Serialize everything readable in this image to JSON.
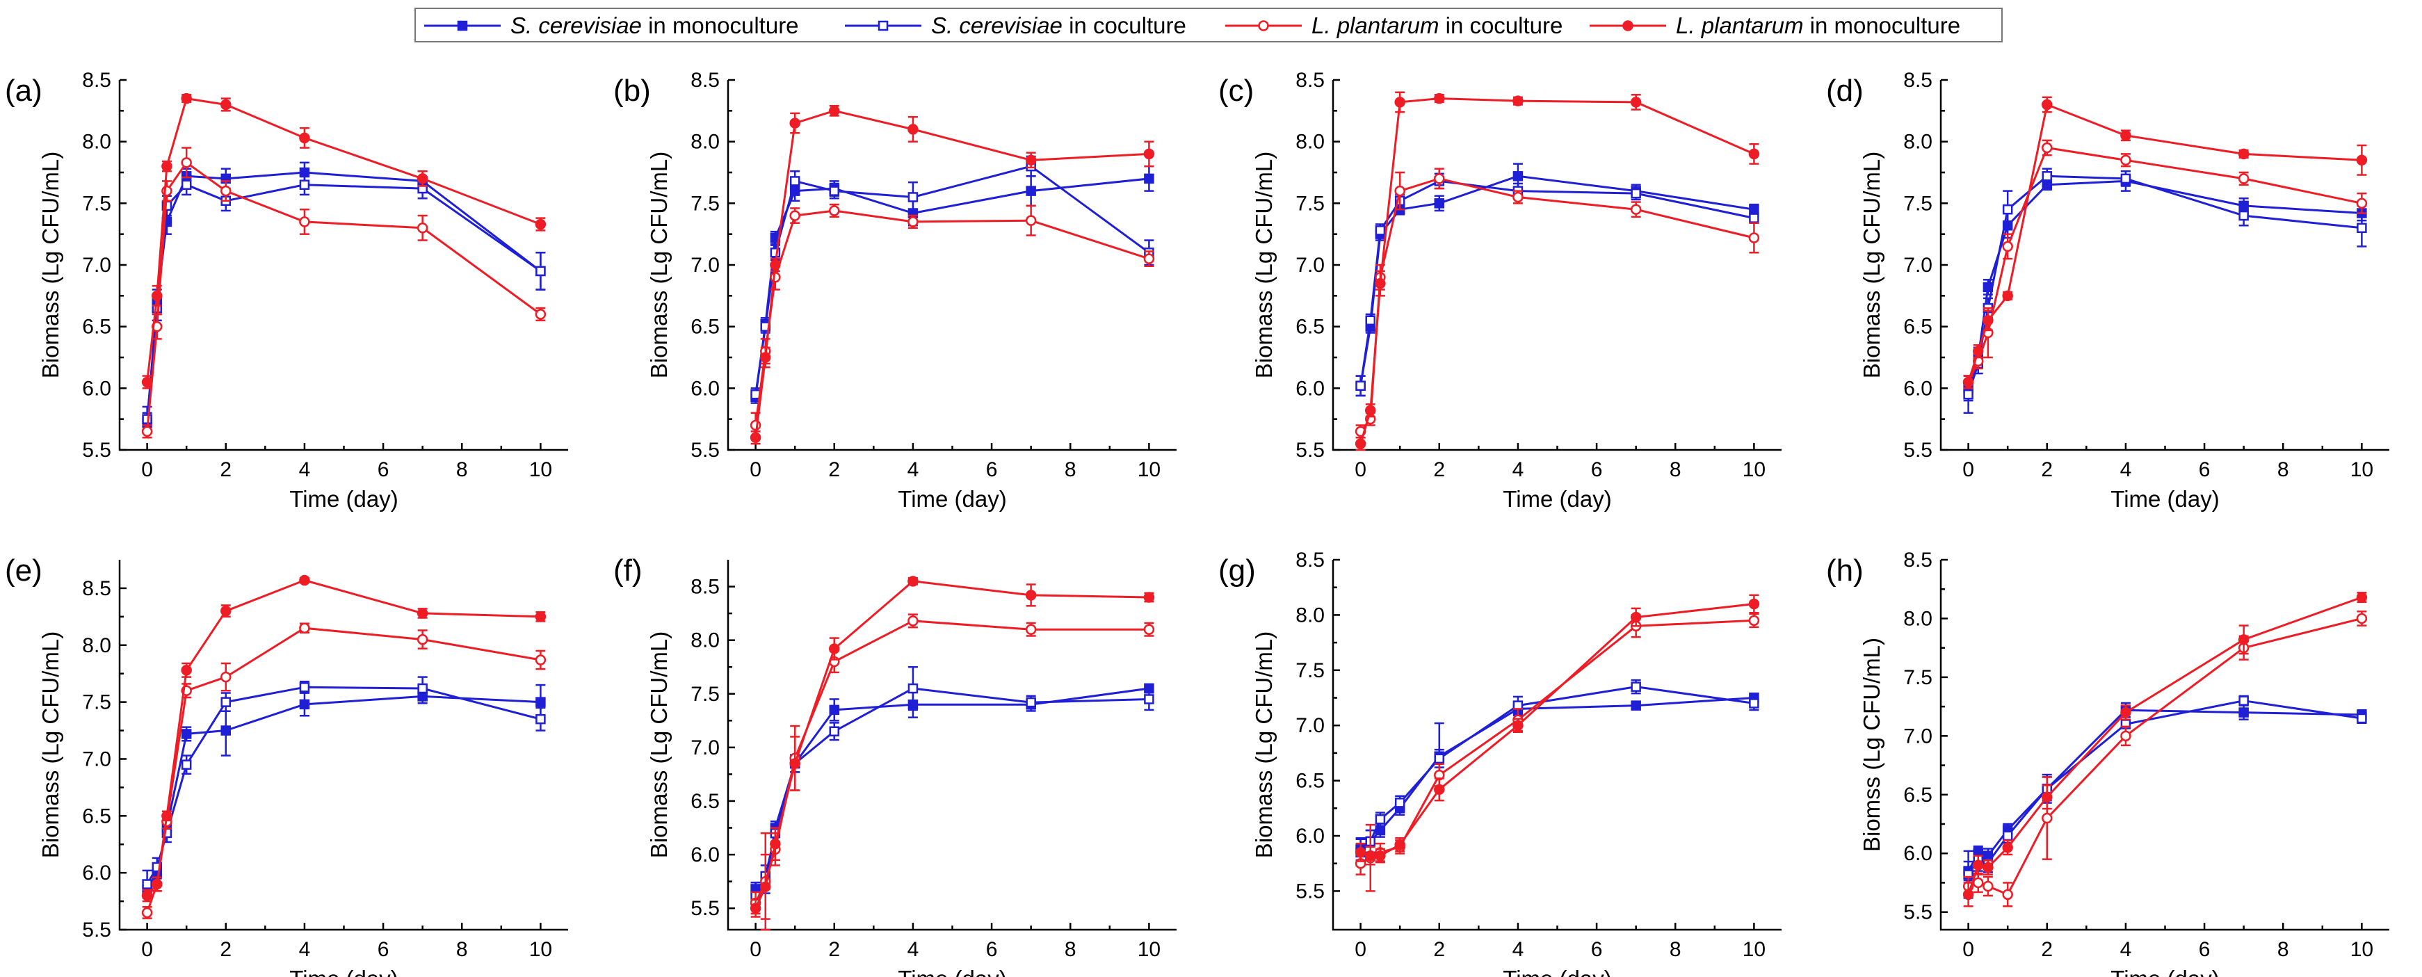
{
  "figure": {
    "colors": {
      "blue": "#1f1fd6",
      "red": "#ee1c25"
    },
    "legend": [
      {
        "species": "S. cerevisiae",
        "suffix": " in monoculture",
        "color": "#1f1fd6",
        "marker": "square-filled"
      },
      {
        "species": "S. cerevisiae",
        "suffix": " in coculture",
        "color": "#1f1fd6",
        "marker": "square-open"
      },
      {
        "species": "L. plantarum",
        "suffix": " in coculture",
        "color": "#ee1c25",
        "marker": "circle-open"
      },
      {
        "species": "L. plantarum",
        "suffix": " in monoculture",
        "color": "#ee1c25",
        "marker": "circle-filled"
      }
    ]
  },
  "chart_data": [
    {
      "panel": "(a)",
      "type": "line",
      "xlabel": "Time (day)",
      "ylabel": "Biomass (Lg CFU/mL)",
      "xlim": [
        -0.7,
        10.7
      ],
      "ylim": [
        5.5,
        8.5
      ],
      "xticks": [
        0,
        2,
        4,
        6,
        8,
        10
      ],
      "yticks": [
        "5.5",
        "6.0",
        "6.5",
        "7.0",
        "7.5",
        "8.0",
        "8.5"
      ],
      "x": [
        0,
        0.25,
        0.5,
        1,
        2,
        4,
        7,
        10
      ],
      "series": [
        {
          "name": "S. cerevisiae in monoculture",
          "values": [
            5.72,
            6.7,
            7.35,
            7.72,
            7.7,
            7.75,
            7.68,
            6.95
          ],
          "errors": [
            0.08,
            0.1,
            0.1,
            0.06,
            0.08,
            0.08,
            0.08,
            0.15
          ]
        },
        {
          "name": "S. cerevisiae in coculture",
          "values": [
            5.75,
            6.65,
            7.48,
            7.65,
            7.52,
            7.65,
            7.62,
            6.95
          ],
          "errors": [
            0.1,
            0.1,
            0.08,
            0.08,
            0.08,
            0.08,
            0.08,
            0.15
          ]
        },
        {
          "name": "L. plantarum in coculture",
          "values": [
            5.65,
            6.5,
            7.6,
            7.83,
            7.6,
            7.35,
            7.3,
            6.6
          ],
          "errors": [
            0.05,
            0.1,
            0.08,
            0.12,
            0.08,
            0.1,
            0.1,
            0.05
          ]
        },
        {
          "name": "L. plantarum in monoculture",
          "values": [
            6.05,
            6.75,
            7.8,
            8.35,
            8.3,
            8.03,
            7.7,
            7.33
          ],
          "errors": [
            0.05,
            0.08,
            0.04,
            0.03,
            0.05,
            0.08,
            0.06,
            0.05
          ]
        }
      ]
    },
    {
      "panel": "(b)",
      "type": "line",
      "xlabel": "Time (day)",
      "ylabel": "Biomass (Lg CFU/mL)",
      "xlim": [
        -0.7,
        10.7
      ],
      "ylim": [
        5.5,
        8.5
      ],
      "xticks": [
        0,
        2,
        4,
        6,
        8,
        10
      ],
      "yticks": [
        "5.5",
        "6.0",
        "6.5",
        "7.0",
        "7.5",
        "8.0",
        "8.5"
      ],
      "x": [
        0,
        0.25,
        0.5,
        1,
        2,
        4,
        7,
        10
      ],
      "series": [
        {
          "name": "S. cerevisiae in monoculture",
          "values": [
            5.93,
            6.52,
            7.22,
            7.6,
            7.62,
            7.42,
            7.6,
            7.7
          ],
          "errors": [
            0.05,
            0.05,
            0.05,
            0.08,
            0.06,
            0.1,
            0.12,
            0.1
          ]
        },
        {
          "name": "S. cerevisiae in coculture",
          "values": [
            5.95,
            6.5,
            7.1,
            7.68,
            7.6,
            7.55,
            7.8,
            7.1
          ],
          "errors": [
            0.05,
            0.05,
            0.06,
            0.08,
            0.06,
            0.12,
            0.08,
            0.1
          ]
        },
        {
          "name": "L. plantarum in coculture",
          "values": [
            5.7,
            6.3,
            6.9,
            7.4,
            7.44,
            7.35,
            7.36,
            7.05
          ],
          "errors": [
            0.1,
            0.1,
            0.1,
            0.06,
            0.05,
            0.05,
            0.12,
            0.06
          ]
        },
        {
          "name": "L. plantarum in monoculture",
          "values": [
            5.6,
            6.25,
            7.0,
            8.15,
            8.25,
            8.1,
            7.85,
            7.9
          ],
          "errors": [
            0.05,
            0.08,
            0.05,
            0.08,
            0.04,
            0.1,
            0.06,
            0.1
          ]
        }
      ]
    },
    {
      "panel": "(c)",
      "type": "line",
      "xlabel": "Time (day)",
      "ylabel": "Biomass (Lg CFU/mL)",
      "xlim": [
        -0.7,
        10.7
      ],
      "ylim": [
        5.5,
        8.5
      ],
      "xticks": [
        0,
        2,
        4,
        6,
        8,
        10
      ],
      "yticks": [
        "5.5",
        "6.0",
        "6.5",
        "7.0",
        "7.5",
        "8.0",
        "8.5"
      ],
      "x": [
        0,
        0.25,
        0.5,
        1,
        2,
        4,
        7,
        10
      ],
      "series": [
        {
          "name": "S. cerevisiae in monoculture",
          "values": [
            6.02,
            6.5,
            7.25,
            7.45,
            7.5,
            7.72,
            7.6,
            7.45
          ],
          "errors": [
            0.08,
            0.05,
            0.05,
            0.04,
            0.06,
            0.1,
            0.05,
            0.04
          ]
        },
        {
          "name": "S. cerevisiae in coculture",
          "values": [
            6.02,
            6.55,
            7.28,
            7.52,
            7.68,
            7.6,
            7.58,
            7.38
          ],
          "errors": [
            0.08,
            0.05,
            0.05,
            0.05,
            0.06,
            0.06,
            0.05,
            0.04
          ]
        },
        {
          "name": "L. plantarum in coculture",
          "values": [
            5.65,
            5.75,
            6.9,
            7.6,
            7.7,
            7.55,
            7.45,
            7.22
          ],
          "errors": [
            0.05,
            0.05,
            0.1,
            0.15,
            0.08,
            0.05,
            0.06,
            0.12
          ]
        },
        {
          "name": "L. plantarum in monoculture",
          "values": [
            5.55,
            5.82,
            6.85,
            8.32,
            8.35,
            8.33,
            8.32,
            7.9
          ],
          "errors": [
            0.05,
            0.05,
            0.1,
            0.08,
            0.03,
            0.03,
            0.06,
            0.08
          ]
        }
      ]
    },
    {
      "panel": "(d)",
      "type": "line",
      "xlabel": "Time (day)",
      "ylabel": "Biomass (Lg CFU/mL)",
      "xlim": [
        -0.7,
        10.7
      ],
      "ylim": [
        5.5,
        8.5
      ],
      "xticks": [
        0,
        2,
        4,
        6,
        8,
        10
      ],
      "yticks": [
        "5.5",
        "6.0",
        "6.5",
        "7.0",
        "7.5",
        "8.0",
        "8.5"
      ],
      "x": [
        0,
        0.25,
        0.5,
        1,
        2,
        4,
        7,
        10
      ],
      "series": [
        {
          "name": "S. cerevisiae in monoculture",
          "values": [
            6.0,
            6.25,
            6.82,
            7.32,
            7.65,
            7.68,
            7.48,
            7.42
          ],
          "errors": [
            0.1,
            0.08,
            0.06,
            0.1,
            0.04,
            0.08,
            0.06,
            0.06
          ]
        },
        {
          "name": "S. cerevisiae in coculture",
          "values": [
            5.95,
            6.2,
            6.65,
            7.45,
            7.72,
            7.7,
            7.4,
            7.3
          ],
          "errors": [
            0.15,
            0.08,
            0.08,
            0.15,
            0.06,
            0.06,
            0.08,
            0.15
          ]
        },
        {
          "name": "L. plantarum in coculture",
          "values": [
            6.05,
            6.22,
            6.45,
            7.15,
            7.95,
            7.85,
            7.7,
            7.5
          ],
          "errors": [
            0.05,
            0.06,
            0.2,
            0.1,
            0.06,
            0.05,
            0.05,
            0.08
          ]
        },
        {
          "name": "L. plantarum in monoculture",
          "values": [
            6.05,
            6.3,
            6.55,
            6.75,
            8.3,
            8.05,
            7.9,
            7.85
          ],
          "errors": [
            0.05,
            0.05,
            0.08,
            0.03,
            0.06,
            0.04,
            0.03,
            0.12
          ]
        }
      ]
    },
    {
      "panel": "(e)",
      "type": "line",
      "xlabel": "Time (day)",
      "ylabel": "Biomass (Lg CFU/mL)",
      "xlim": [
        -0.7,
        10.7
      ],
      "ylim": [
        5.5,
        8.75
      ],
      "xticks": [
        0,
        2,
        4,
        6,
        8,
        10
      ],
      "yticks": [
        "5.5",
        "6.0",
        "6.5",
        "7.0",
        "7.5",
        "8.0",
        "8.5"
      ],
      "x": [
        0,
        0.25,
        0.5,
        1,
        2,
        4,
        7,
        10
      ],
      "series": [
        {
          "name": "S. cerevisiae in monoculture",
          "values": [
            5.85,
            6.0,
            6.4,
            7.22,
            7.25,
            7.48,
            7.55,
            7.5
          ],
          "errors": [
            0.05,
            0.05,
            0.06,
            0.06,
            0.22,
            0.1,
            0.06,
            0.15
          ]
        },
        {
          "name": "S. cerevisiae in coculture",
          "values": [
            5.9,
            6.05,
            6.35,
            6.95,
            7.5,
            7.63,
            7.62,
            7.35
          ],
          "errors": [
            0.12,
            0.08,
            0.08,
            0.08,
            0.08,
            0.05,
            0.1,
            0.1
          ]
        },
        {
          "name": "L. plantarum in coculture",
          "values": [
            5.65,
            5.9,
            6.45,
            7.6,
            7.72,
            8.15,
            8.05,
            7.87
          ],
          "errors": [
            0.05,
            0.06,
            0.06,
            0.06,
            0.12,
            0.04,
            0.08,
            0.08
          ]
        },
        {
          "name": "L. plantarum in monoculture",
          "values": [
            5.8,
            5.9,
            6.5,
            7.78,
            8.3,
            8.57,
            8.28,
            8.25
          ],
          "errors": [
            0.05,
            0.06,
            0.04,
            0.06,
            0.05,
            0.02,
            0.04,
            0.04
          ]
        }
      ]
    },
    {
      "panel": "(f)",
      "type": "line",
      "xlabel": "Time (day)",
      "ylabel": "Biomass (Lg CFU/mL)",
      "xlim": [
        -0.7,
        10.7
      ],
      "ylim": [
        5.3,
        8.75
      ],
      "xticks": [
        0,
        2,
        4,
        6,
        8,
        10
      ],
      "yticks": [
        "5.5",
        "6.0",
        "6.5",
        "7.0",
        "7.5",
        "8.0",
        "8.5"
      ],
      "x": [
        0,
        0.25,
        0.5,
        1,
        2,
        4,
        7,
        10
      ],
      "series": [
        {
          "name": "S. cerevisiae in monoculture",
          "values": [
            5.68,
            5.72,
            6.25,
            6.85,
            7.35,
            7.4,
            7.4,
            7.55
          ],
          "errors": [
            0.06,
            0.08,
            0.06,
            0.08,
            0.1,
            0.12,
            0.06,
            0.04
          ]
        },
        {
          "name": "S. cerevisiae in coculture",
          "values": [
            5.62,
            5.8,
            6.2,
            6.85,
            7.15,
            7.55,
            7.42,
            7.45
          ],
          "errors": [
            0.12,
            0.1,
            0.08,
            0.08,
            0.08,
            0.2,
            0.06,
            0.1
          ]
        },
        {
          "name": "L. plantarum in coculture",
          "values": [
            5.55,
            5.75,
            6.05,
            6.9,
            7.8,
            8.18,
            8.1,
            8.1
          ],
          "errors": [
            0.1,
            0.45,
            0.15,
            0.3,
            0.1,
            0.06,
            0.06,
            0.06
          ]
        },
        {
          "name": "L. plantarum in monoculture",
          "values": [
            5.5,
            5.7,
            6.1,
            6.85,
            7.92,
            8.55,
            8.42,
            8.4
          ],
          "errors": [
            0.08,
            0.3,
            0.15,
            0.25,
            0.1,
            0.03,
            0.1,
            0.04
          ]
        }
      ]
    },
    {
      "panel": "(g)",
      "type": "line",
      "xlabel": "Time (day)",
      "ylabel": "Biomass (Lg CFU/mL)",
      "xlim": [
        -0.7,
        10.7
      ],
      "ylim": [
        5.15,
        8.5
      ],
      "xticks": [
        0,
        2,
        4,
        6,
        8,
        10
      ],
      "yticks": [
        "5.5",
        "6.0",
        "6.5",
        "7.0",
        "7.5",
        "8.0",
        "8.5"
      ],
      "x": [
        0,
        0.25,
        0.5,
        1,
        2,
        4,
        7,
        10
      ],
      "series": [
        {
          "name": "S. cerevisiae in monoculture",
          "values": [
            5.88,
            5.95,
            6.05,
            6.25,
            6.72,
            7.15,
            7.18,
            7.25
          ],
          "errors": [
            0.1,
            0.1,
            0.06,
            0.06,
            0.3,
            0.06,
            0.03,
            0.04
          ]
        },
        {
          "name": "S. cerevisiae in coculture",
          "values": [
            5.85,
            5.95,
            6.15,
            6.3,
            6.7,
            7.18,
            7.35,
            7.2
          ],
          "errors": [
            0.12,
            0.1,
            0.06,
            0.06,
            0.08,
            0.08,
            0.06,
            0.06
          ]
        },
        {
          "name": "L. plantarum in coculture",
          "values": [
            5.75,
            5.8,
            5.85,
            5.9,
            6.55,
            7.05,
            7.9,
            7.95
          ],
          "errors": [
            0.1,
            0.3,
            0.08,
            0.06,
            0.1,
            0.1,
            0.1,
            0.06
          ]
        },
        {
          "name": "L. plantarum in monoculture",
          "values": [
            5.85,
            5.82,
            5.82,
            5.92,
            6.42,
            7.0,
            7.98,
            8.1
          ],
          "errors": [
            0.08,
            0.08,
            0.06,
            0.06,
            0.1,
            0.06,
            0.08,
            0.08
          ]
        }
      ]
    },
    {
      "panel": "(h)",
      "type": "line",
      "xlabel": "Time (day)",
      "ylabel": "Biomss (Lg CFU/mL)",
      "xlim": [
        -0.7,
        10.7
      ],
      "ylim": [
        5.35,
        8.5
      ],
      "xticks": [
        0,
        2,
        4,
        6,
        8,
        10
      ],
      "yticks": [
        "5.5",
        "6.0",
        "6.5",
        "7.0",
        "7.5",
        "8.0",
        "8.5"
      ],
      "x": [
        0,
        0.25,
        0.5,
        1,
        2,
        4,
        7,
        10
      ],
      "series": [
        {
          "name": "S. cerevisiae in monoculture",
          "values": [
            5.85,
            6.0,
            5.98,
            6.2,
            6.55,
            7.22,
            7.2,
            7.18
          ],
          "errors": [
            0.08,
            0.06,
            0.06,
            0.05,
            0.1,
            0.06,
            0.06,
            0.04
          ]
        },
        {
          "name": "S. cerevisiae in coculture",
          "values": [
            5.82,
            5.95,
            5.92,
            6.15,
            6.55,
            7.1,
            7.3,
            7.15
          ],
          "errors": [
            0.2,
            0.1,
            0.08,
            0.06,
            0.12,
            0.1,
            0.04,
            0.04
          ]
        },
        {
          "name": "L. plantarum in coculture",
          "values": [
            5.72,
            5.75,
            5.72,
            5.65,
            6.3,
            7.0,
            7.75,
            8.0
          ],
          "errors": [
            0.08,
            0.08,
            0.08,
            0.1,
            0.35,
            0.08,
            0.1,
            0.06
          ]
        },
        {
          "name": "L. plantarum in monoculture",
          "values": [
            5.65,
            5.9,
            5.88,
            6.05,
            6.48,
            7.2,
            7.82,
            8.18
          ],
          "errors": [
            0.1,
            0.08,
            0.06,
            0.06,
            0.1,
            0.06,
            0.12,
            0.04
          ]
        }
      ]
    }
  ]
}
